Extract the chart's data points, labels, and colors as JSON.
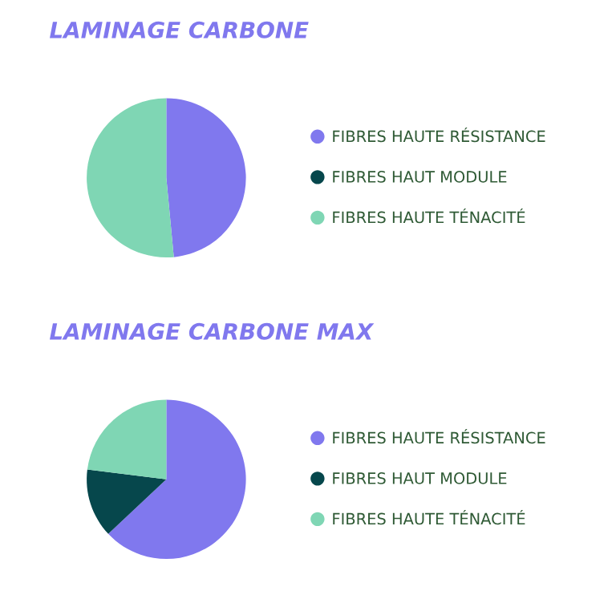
{
  "chart_data": [
    {
      "type": "pie",
      "title": "LAMINAGE CARBONE",
      "categories": [
        "FIBRES HAUTE RÉSISTANCE",
        "FIBRES HAUT MODULE",
        "FIBRES HAUTE TÉNACITÉ"
      ],
      "values": [
        48.5,
        0,
        51.5
      ],
      "colors": [
        "#8078ee",
        "#06474c",
        "#7fd6b4"
      ],
      "legend": "right"
    },
    {
      "type": "pie",
      "title": "LAMINAGE CARBONE MAX",
      "categories": [
        "FIBRES HAUTE RÉSISTANCE",
        "FIBRES HAUT MODULE",
        "FIBRES HAUTE TÉNACITÉ"
      ],
      "values": [
        63,
        14,
        23
      ],
      "colors": [
        "#8078ee",
        "#06474c",
        "#7fd6b4"
      ],
      "legend": "right"
    }
  ]
}
